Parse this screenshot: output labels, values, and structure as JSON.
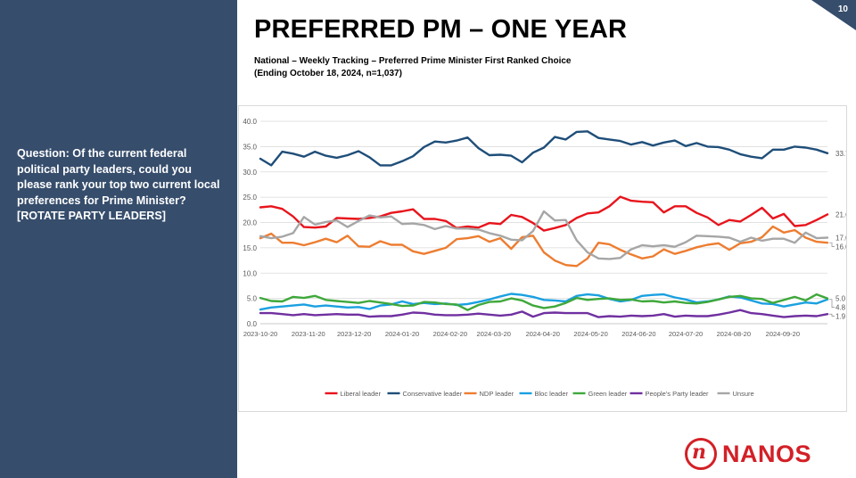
{
  "page": {
    "number": "10",
    "title": "PREFERRED PM – ONE YEAR",
    "subtitle_line1": "National – Weekly Tracking – Preferred Prime Minister First Ranked Choice",
    "subtitle_line2": "(Ending October 18, 2024, n=1,037)",
    "question": "Question: Of the current federal political party leaders, could you please rank your top two current local preferences for Prime Minister? [ROTATE PARTY LEADERS]",
    "logo_text": "NANOS",
    "logo_mark": "n"
  },
  "chart_data": {
    "type": "line",
    "title": "",
    "xlabel": "",
    "ylabel": "",
    "ylim": [
      0,
      40
    ],
    "y_ticks": [
      "0.0",
      "5.0",
      "10.0",
      "15.0",
      "20.0",
      "25.0",
      "30.0",
      "35.0",
      "40.0"
    ],
    "x_tick_labels": [
      "2023-10-20",
      "2023-11-20",
      "2023-12-20",
      "2024-01-20",
      "2024-02-20",
      "2024-03-20",
      "2024-04-20",
      "2024-05-20",
      "2024-06-20",
      "2024-07-20",
      "2024-08-20",
      "2024-09-20"
    ],
    "x_tick_weeks": [
      0,
      4.4,
      8.6,
      13.0,
      17.4,
      21.4,
      25.9,
      30.3,
      34.7,
      39.0,
      43.4,
      47.9
    ],
    "grid": true,
    "legend_position": "bottom",
    "series": [
      {
        "name": "Liberal leader",
        "color": "#e8141c",
        "end_label": "21.6",
        "values": [
          23.0,
          23.2,
          22.7,
          21.2,
          19.1,
          19.0,
          19.2,
          20.9,
          20.8,
          20.7,
          20.9,
          21.2,
          21.9,
          22.2,
          22.6,
          20.7,
          20.7,
          20.3,
          18.9,
          19.2,
          19.0,
          19.9,
          19.7,
          21.5,
          21.1,
          19.9,
          18.4,
          18.9,
          19.5,
          20.9,
          21.8,
          22.0,
          23.2,
          25.1,
          24.3,
          24.1,
          24.0,
          22.0,
          23.2,
          23.2,
          21.9,
          21.0,
          19.5,
          20.5,
          20.2,
          21.5,
          22.9,
          20.8,
          21.7,
          19.3,
          19.5,
          20.5,
          21.6
        ]
      },
      {
        "name": "Conservative leader",
        "color": "#1f4e79",
        "end_label": "33.7",
        "values": [
          32.6,
          31.3,
          34.0,
          33.6,
          33.0,
          34.0,
          33.2,
          32.8,
          33.3,
          34.1,
          32.9,
          31.3,
          31.3,
          32.1,
          33.1,
          34.9,
          36.0,
          35.8,
          36.2,
          36.8,
          34.7,
          33.3,
          33.4,
          33.2,
          31.9,
          33.8,
          34.8,
          36.9,
          36.4,
          37.9,
          38.0,
          36.7,
          36.4,
          36.1,
          35.4,
          35.9,
          35.2,
          35.8,
          36.2,
          35.1,
          35.7,
          35.0,
          34.9,
          34.4,
          33.5,
          33.0,
          32.7,
          34.4,
          34.4,
          35.0,
          34.8,
          34.4,
          33.7
        ]
      },
      {
        "name": "NDP leader",
        "color": "#ed7d31",
        "end_label": "16.0",
        "values": [
          16.9,
          17.8,
          16.0,
          16.0,
          15.5,
          16.1,
          16.8,
          16.1,
          17.4,
          15.3,
          15.2,
          16.3,
          15.6,
          15.6,
          14.3,
          13.8,
          14.4,
          15.0,
          16.7,
          16.9,
          17.3,
          16.2,
          16.9,
          14.8,
          17.1,
          17.4,
          14.1,
          12.5,
          11.6,
          11.4,
          12.9,
          16.0,
          15.7,
          14.6,
          13.7,
          12.9,
          13.3,
          14.7,
          13.8,
          14.4,
          15.1,
          15.6,
          15.9,
          14.6,
          15.9,
          16.2,
          17.1,
          19.2,
          18.0,
          18.5,
          17.0,
          16.2,
          16.0
        ]
      },
      {
        "name": "Bloc leader",
        "color": "#1aa0e0",
        "end_label": "4.8",
        "values": [
          2.8,
          3.2,
          3.4,
          3.6,
          3.8,
          3.4,
          3.6,
          3.4,
          3.2,
          3.3,
          2.9,
          3.6,
          3.8,
          4.4,
          3.9,
          4.1,
          3.9,
          4.0,
          3.7,
          3.9,
          4.3,
          4.8,
          5.4,
          5.9,
          5.7,
          5.3,
          4.7,
          4.6,
          4.4,
          5.5,
          5.8,
          5.6,
          4.9,
          4.4,
          4.7,
          5.5,
          5.7,
          5.8,
          5.2,
          4.8,
          4.2,
          4.4,
          4.8,
          5.4,
          5.2,
          4.6,
          4.0,
          3.9,
          3.4,
          3.8,
          4.2,
          4.0,
          4.8
        ]
      },
      {
        "name": "Green leader",
        "color": "#3fa83b",
        "end_label": "5.0",
        "values": [
          5.1,
          4.5,
          4.4,
          5.3,
          5.1,
          5.5,
          4.7,
          4.5,
          4.3,
          4.1,
          4.5,
          4.2,
          3.9,
          3.5,
          3.6,
          4.3,
          4.2,
          3.9,
          3.8,
          2.7,
          3.7,
          4.3,
          4.4,
          5.0,
          4.6,
          3.6,
          3.1,
          3.4,
          4.1,
          5.1,
          4.7,
          4.9,
          5.0,
          4.7,
          4.8,
          4.4,
          4.5,
          4.2,
          4.4,
          4.1,
          4.0,
          4.3,
          4.8,
          5.3,
          5.5,
          5.0,
          4.9,
          4.1,
          4.7,
          5.3,
          4.6,
          5.8,
          5.0
        ]
      },
      {
        "name": "People's Party leader",
        "color": "#7030a0",
        "end_label": "1.9",
        "values": [
          2.1,
          2.1,
          1.9,
          1.7,
          1.9,
          1.7,
          1.8,
          1.9,
          1.8,
          1.8,
          1.4,
          1.5,
          1.5,
          1.8,
          2.2,
          2.1,
          1.8,
          1.7,
          1.7,
          1.8,
          2.0,
          1.8,
          1.6,
          1.8,
          2.4,
          1.4,
          2.1,
          2.2,
          2.1,
          2.1,
          2.1,
          1.3,
          1.5,
          1.4,
          1.6,
          1.5,
          1.6,
          1.9,
          1.4,
          1.6,
          1.5,
          1.5,
          1.8,
          2.2,
          2.7,
          2.1,
          1.9,
          1.6,
          1.3,
          1.5,
          1.6,
          1.5,
          1.9
        ]
      },
      {
        "name": "Unsure",
        "color": "#a6a6a6",
        "end_label": "17.0",
        "values": [
          17.3,
          16.9,
          17.2,
          17.9,
          21.1,
          19.6,
          20.1,
          20.4,
          19.1,
          20.3,
          21.4,
          21.0,
          21.2,
          19.7,
          19.8,
          19.5,
          18.7,
          19.3,
          18.8,
          18.8,
          18.6,
          17.9,
          17.4,
          16.6,
          16.5,
          18.3,
          22.2,
          20.4,
          20.5,
          16.5,
          14.1,
          12.9,
          12.8,
          13.0,
          14.7,
          15.5,
          15.3,
          15.5,
          15.2,
          16.1,
          17.4,
          17.3,
          17.2,
          17.0,
          16.2,
          17.0,
          16.4,
          16.8,
          16.8,
          16.0,
          18.0,
          16.9,
          17.0
        ]
      }
    ]
  }
}
